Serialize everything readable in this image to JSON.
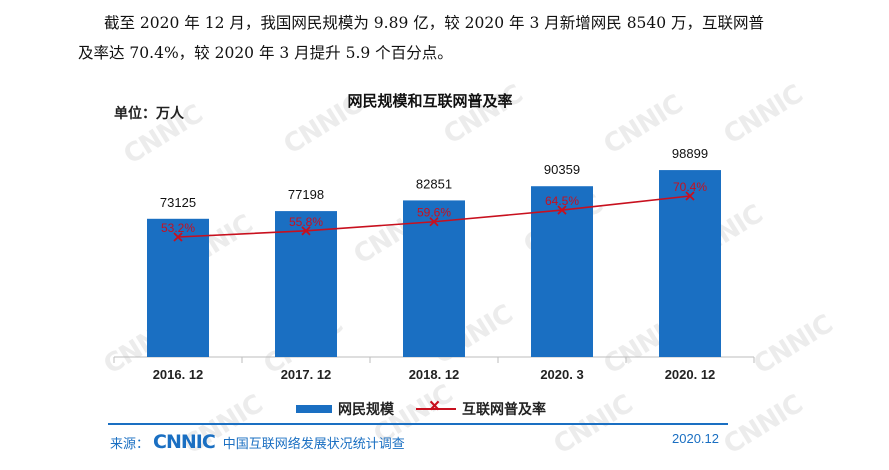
{
  "paragraph": {
    "line1": "截至 2020 年 12 月，我国网民规模为 9.89 亿，较 2020 年 3 月新增网民 8540 万，互联网普",
    "line2": "及率达 70.4%，较 2020 年 3 月提升 5.9 个百分点。"
  },
  "watermark_text": "CNNIC",
  "chart_data": {
    "type": "bar",
    "title": "网民规模和互联网普及率",
    "unit_label": "单位：万人",
    "categories": [
      "2016. 12",
      "2017. 12",
      "2018. 12",
      "2020. 3",
      "2020. 12"
    ],
    "series": [
      {
        "name": "网民规模",
        "type": "bar",
        "values": [
          73125,
          77198,
          82851,
          90359,
          98899
        ],
        "labels": [
          "73125",
          "77198",
          "82851",
          "90359",
          "98899"
        ]
      },
      {
        "name": "互联网普及率",
        "type": "line",
        "values": [
          53.2,
          55.8,
          59.6,
          64.5,
          70.4
        ],
        "labels": [
          "53.2%",
          "55.8%",
          "59.6%",
          "64.5%",
          "70.4%"
        ]
      }
    ],
    "grid": false,
    "legend_position": "bottom",
    "colors": {
      "bar": "#1a6fc2",
      "line": "#c8101e"
    }
  },
  "source": {
    "label": "来源：",
    "logo": "CNNIC",
    "text": "中国互联网络发展状况统计调查",
    "date": "2020.12"
  }
}
